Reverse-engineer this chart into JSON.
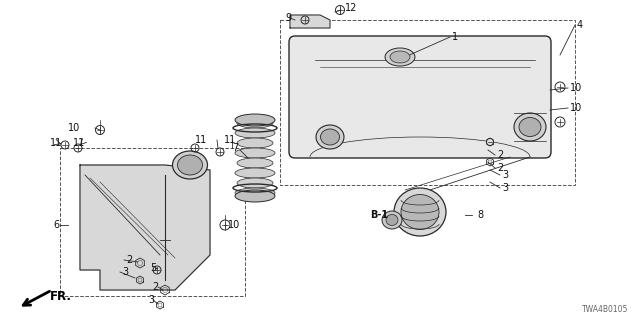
{
  "bg_color": "#ffffff",
  "diagram_code": "TWA4B0105",
  "line_color": "#2a2a2a",
  "label_color": "#111111",
  "label_fs": 7.0,
  "figsize": [
    6.4,
    3.2
  ],
  "dpi": 100
}
